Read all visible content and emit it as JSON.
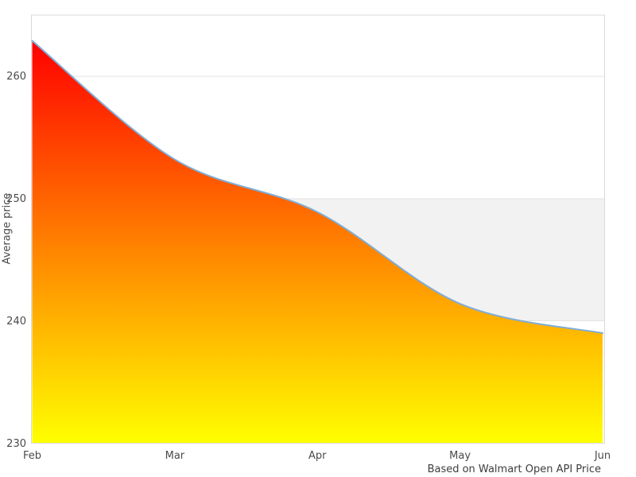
{
  "figure": {
    "background": "#ffffff"
  },
  "caption": "Based on Walmart Open API Price",
  "chart_data": {
    "type": "area",
    "title": "",
    "xlabel": "",
    "ylabel": "Average price",
    "x_categories": [
      "Feb",
      "Mar",
      "Apr",
      "May",
      "Jun"
    ],
    "series": [
      {
        "name": "Average price",
        "values": [
          262.9,
          253.2,
          248.9,
          241.4,
          239.0
        ]
      }
    ],
    "ylim": [
      230,
      265
    ],
    "yticks": [
      230,
      240,
      250,
      260
    ],
    "grid": true,
    "legend_position": "none",
    "band": {
      "from": 240,
      "to": 250,
      "color": "#f2f2f2"
    },
    "line_color": "#7fadd6",
    "area_gradient_top": "#ff0000",
    "area_gradient_bottom": "#ffff00",
    "border_color": "#d9d9d9",
    "gridline_color": "#e3e3e3",
    "tick_text_color": "#4a4a4a"
  }
}
